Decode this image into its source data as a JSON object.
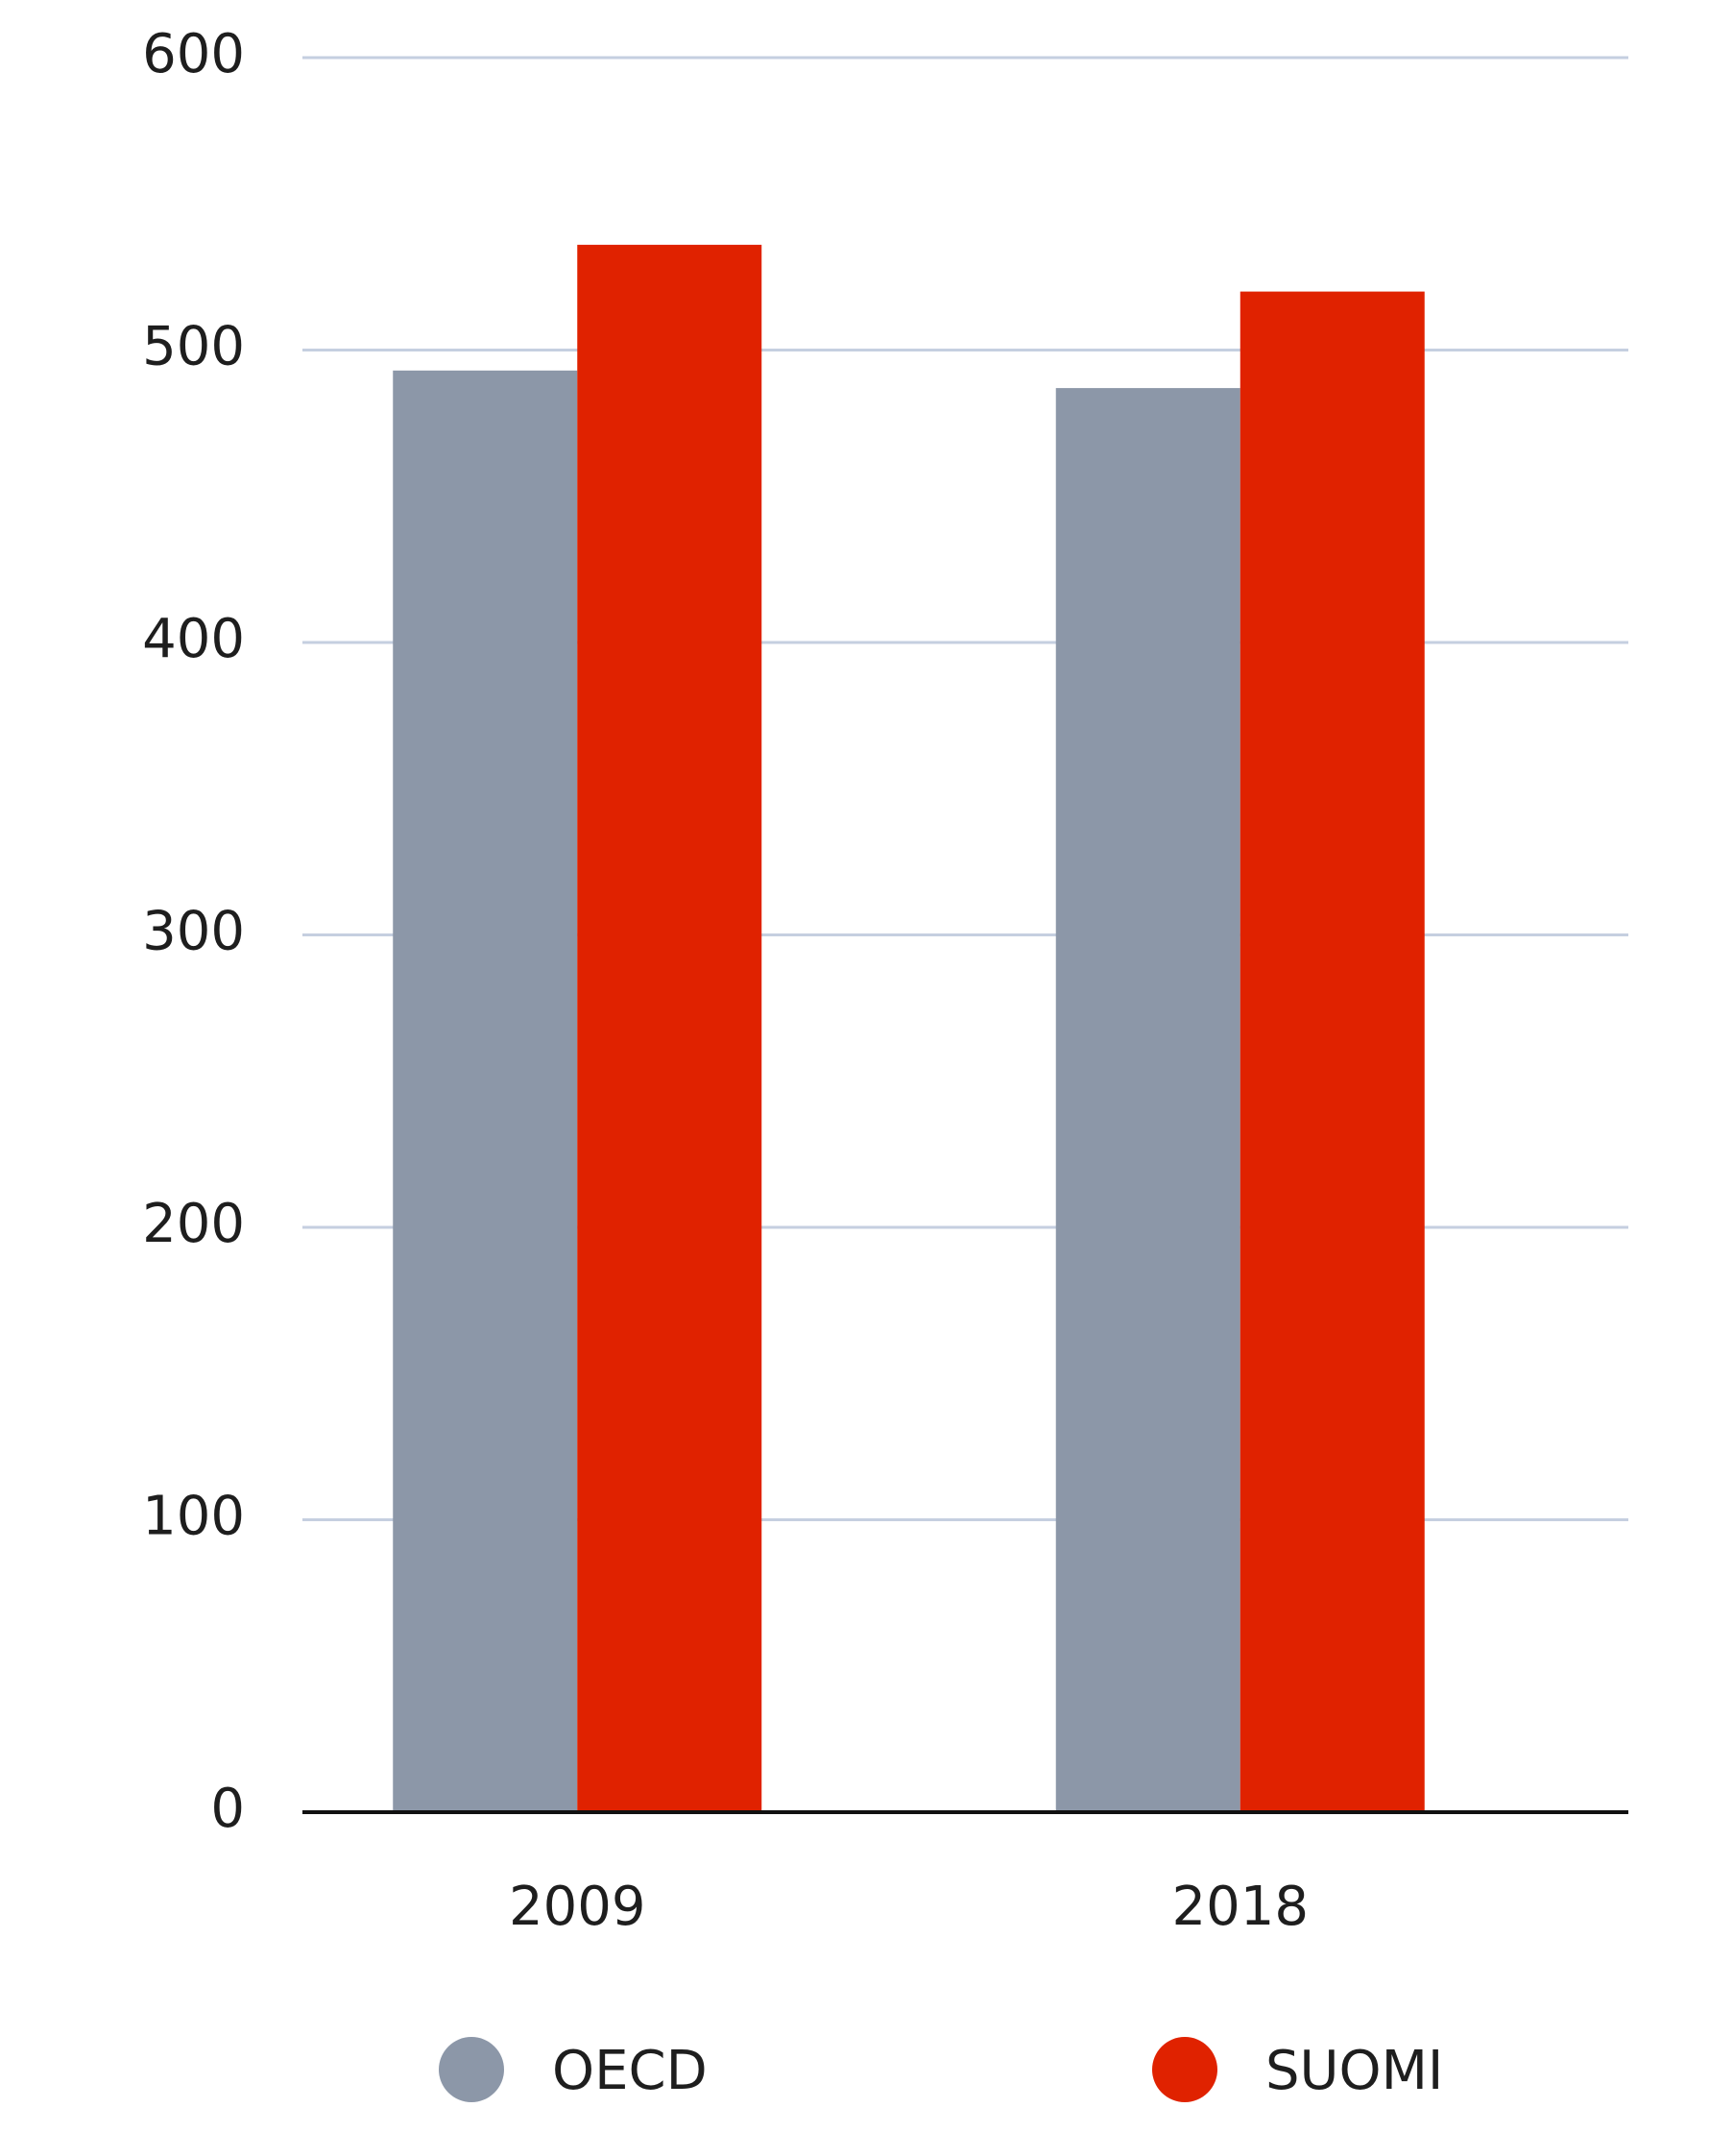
{
  "chart_data": {
    "type": "bar",
    "categories": [
      "2009",
      "2018"
    ],
    "series": [
      {
        "name": "OECD",
        "color": "#8c97a8",
        "values": [
          493,
          487
        ]
      },
      {
        "name": "SUOMI",
        "color": "#e02200",
        "values": [
          536,
          520
        ]
      }
    ],
    "ylim": [
      0,
      600
    ],
    "yticks": [
      0,
      100,
      200,
      300,
      400,
      500,
      600
    ],
    "grid": true
  }
}
